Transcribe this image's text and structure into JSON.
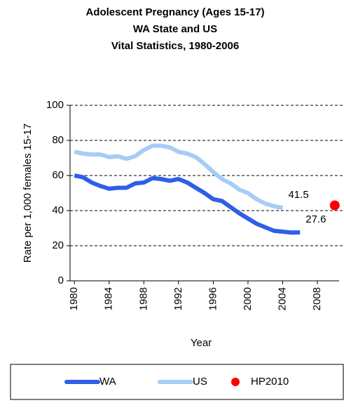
{
  "chart_data": {
    "type": "line",
    "title": [
      "Adolescent Pregnancy (Ages 15-17)",
      "WA State and US",
      "Vital Statistics, 1980-2006"
    ],
    "xlabel": "Year",
    "ylabel": "Rate per 1,000 females 15-17",
    "x": [
      1980,
      1981,
      1982,
      1983,
      1984,
      1985,
      1986,
      1987,
      1988,
      1989,
      1990,
      1991,
      1992,
      1993,
      1994,
      1995,
      1996,
      1997,
      1998,
      1999,
      2000,
      2001,
      2002,
      2003,
      2004,
      2005,
      2006
    ],
    "series": [
      {
        "name": "WA",
        "color": "#2f5fe6",
        "end_label": "27.6",
        "values": [
          60,
          59,
          56,
          54,
          52.5,
          53,
          53,
          55.5,
          56,
          58.5,
          58,
          57,
          58,
          56,
          53,
          50,
          46.5,
          45.5,
          42,
          38.5,
          35.5,
          32.5,
          30.5,
          28.5,
          28,
          27.5,
          27.6
        ]
      },
      {
        "name": "US",
        "color": "#a6cdf5",
        "end_label": "41.5",
        "values": [
          73.5,
          72.5,
          72,
          72,
          70.5,
          71,
          69.5,
          71,
          74.5,
          77,
          77,
          76,
          73.5,
          72.5,
          70.5,
          66.5,
          62,
          58,
          55.5,
          52,
          50,
          46.5,
          44,
          42.5,
          41.5,
          null,
          null
        ]
      }
    ],
    "points": [
      {
        "name": "HP2010",
        "color": "#ff0000",
        "x": 2010,
        "value": 43
      }
    ],
    "xlim": [
      1979.5,
      2010.5
    ],
    "xticks": [
      1980,
      1984,
      1988,
      1992,
      1996,
      2000,
      2004,
      2008
    ],
    "ylim": [
      0,
      100
    ],
    "yticks": [
      0,
      20,
      40,
      60,
      80,
      100
    ],
    "grid": true,
    "legend": "bottom"
  }
}
